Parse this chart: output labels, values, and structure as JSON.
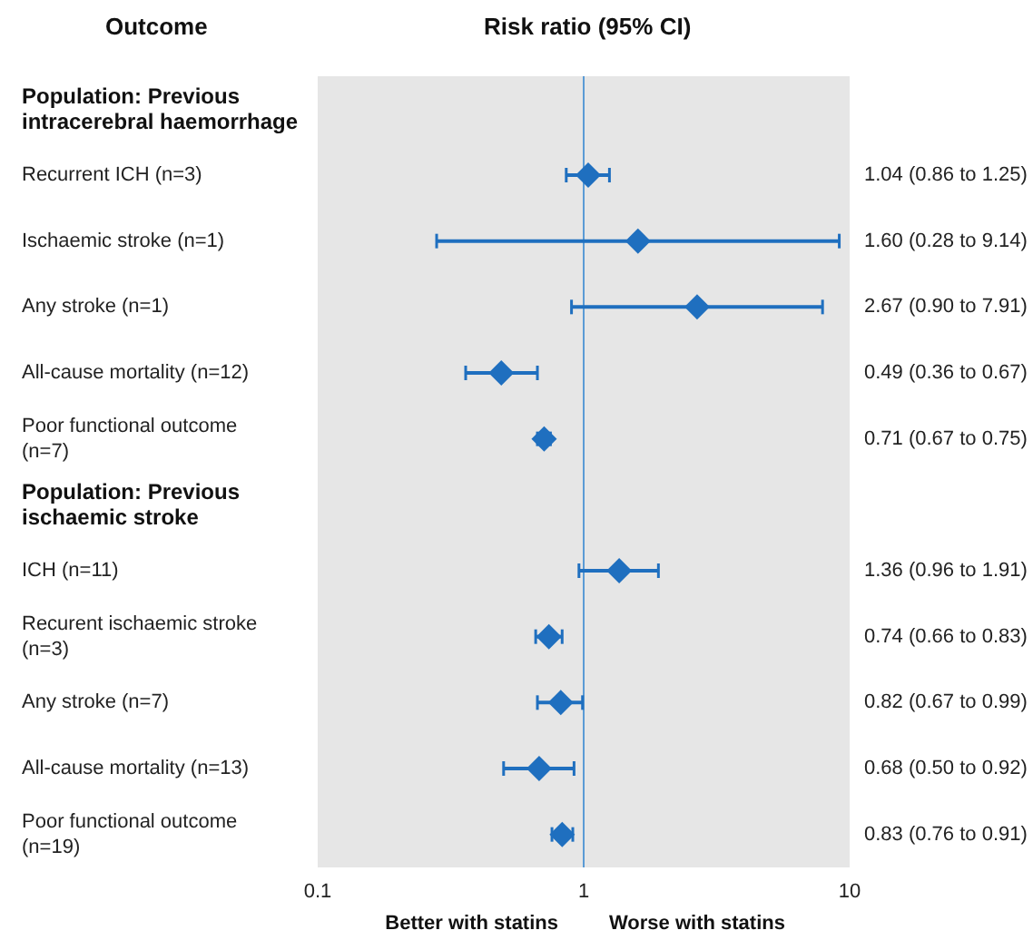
{
  "chart_data": {
    "type": "scatter",
    "title": "Risk ratio (95% CI)",
    "ylabel": "Outcome",
    "categories": [
      "Population: Previous intracerebral haemorrhage",
      "Recurrent ICH (n=3)",
      "Ischaemic stroke (n=1)",
      "Any stroke (n=1)",
      "All-cause mortality (n=12)",
      "Poor functional outcome (n=7)",
      "Population: Previous ischaemic stroke",
      "ICH (n=11)",
      "Recurent ischaemic stroke (n=3)",
      "Any stroke (n=7)",
      "All-cause mortality (n=13)",
      "Poor functional outcome (n=19)"
    ],
    "values": [
      null,
      1.04,
      1.6,
      2.67,
      0.49,
      0.71,
      null,
      1.36,
      0.74,
      0.82,
      0.68,
      0.83
    ],
    "errors": [
      null,
      [
        0.86,
        1.25
      ],
      [
        0.28,
        9.14
      ],
      [
        0.9,
        7.91
      ],
      [
        0.36,
        0.67
      ],
      [
        0.67,
        0.75
      ],
      null,
      [
        0.96,
        1.91
      ],
      [
        0.66,
        0.83
      ],
      [
        0.67,
        0.99
      ],
      [
        0.5,
        0.92
      ],
      [
        0.76,
        0.91
      ]
    ],
    "value_labels": [
      null,
      "1.04 (0.86 to 1.25)",
      "1.60 (0.28 to 9.14)",
      "2.67 (0.90 to 7.91)",
      "0.49 (0.36 to 0.67)",
      "0.71 (0.67 to 0.75)",
      null,
      "1.36 (0.96 to 1.91)",
      "0.74 (0.66 to 0.83)",
      "0.82 (0.67 to 0.99)",
      "0.68 (0.50 to 0.92)",
      "0.83 (0.76 to 0.91)"
    ],
    "color": "#1f6fbf",
    "marker": "diamond",
    "log": "x",
    "orientation": "horizontal",
    "xlim": [
      0.1,
      10
    ],
    "xticks": [
      0.1,
      1,
      10
    ],
    "ref_lines": [
      {
        "axis": "x",
        "value": 1,
        "color": "#5b9bd5"
      }
    ],
    "annotations": [
      "Better with statins",
      "Worse with statins"
    ]
  }
}
